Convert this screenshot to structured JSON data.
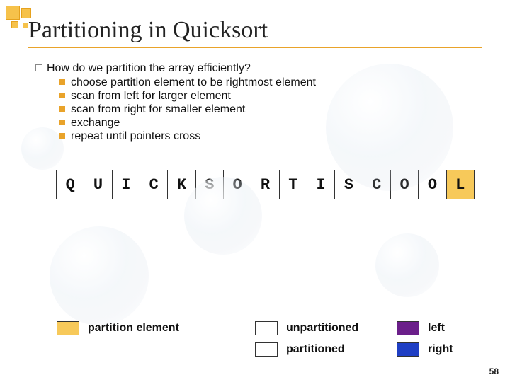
{
  "title": "Partitioning in Quicksort",
  "lead": "How do we partition the array efficiently?",
  "bullets": [
    "choose partition element to be rightmost element",
    "scan from left for larger element",
    "scan from right for smaller element",
    "exchange",
    "repeat until pointers cross"
  ],
  "array": {
    "cells": [
      "Q",
      "U",
      "I",
      "C",
      "K",
      "S",
      "O",
      "R",
      "T",
      "I",
      "S",
      "C",
      "O",
      "O",
      "L"
    ],
    "partition_index": 14,
    "cell_bg": "#ffffff",
    "partition_bg": "#f7c95a",
    "border_color": "#333333",
    "font_family": "Courier New",
    "font_size_pt": 16
  },
  "legend": {
    "partition_element": {
      "label": "partition element",
      "color": "#f7c95a"
    },
    "unpartitioned": {
      "label": "unpartitioned",
      "color": "#ffffff"
    },
    "partitioned": {
      "label": "partitioned",
      "color": "#ffffff"
    },
    "left": {
      "label": "left",
      "color": "#6b1f8a"
    },
    "right": {
      "label": "right",
      "color": "#1f3fc4"
    }
  },
  "colors": {
    "accent": "#e9a32a",
    "title_underline": "#e9a32a",
    "text": "#111111",
    "background": "#ffffff"
  },
  "typography": {
    "title_fontsize_pt": 26,
    "body_fontsize_pt": 12,
    "title_font": "Georgia",
    "body_font": "Arial"
  },
  "page_number": "58"
}
